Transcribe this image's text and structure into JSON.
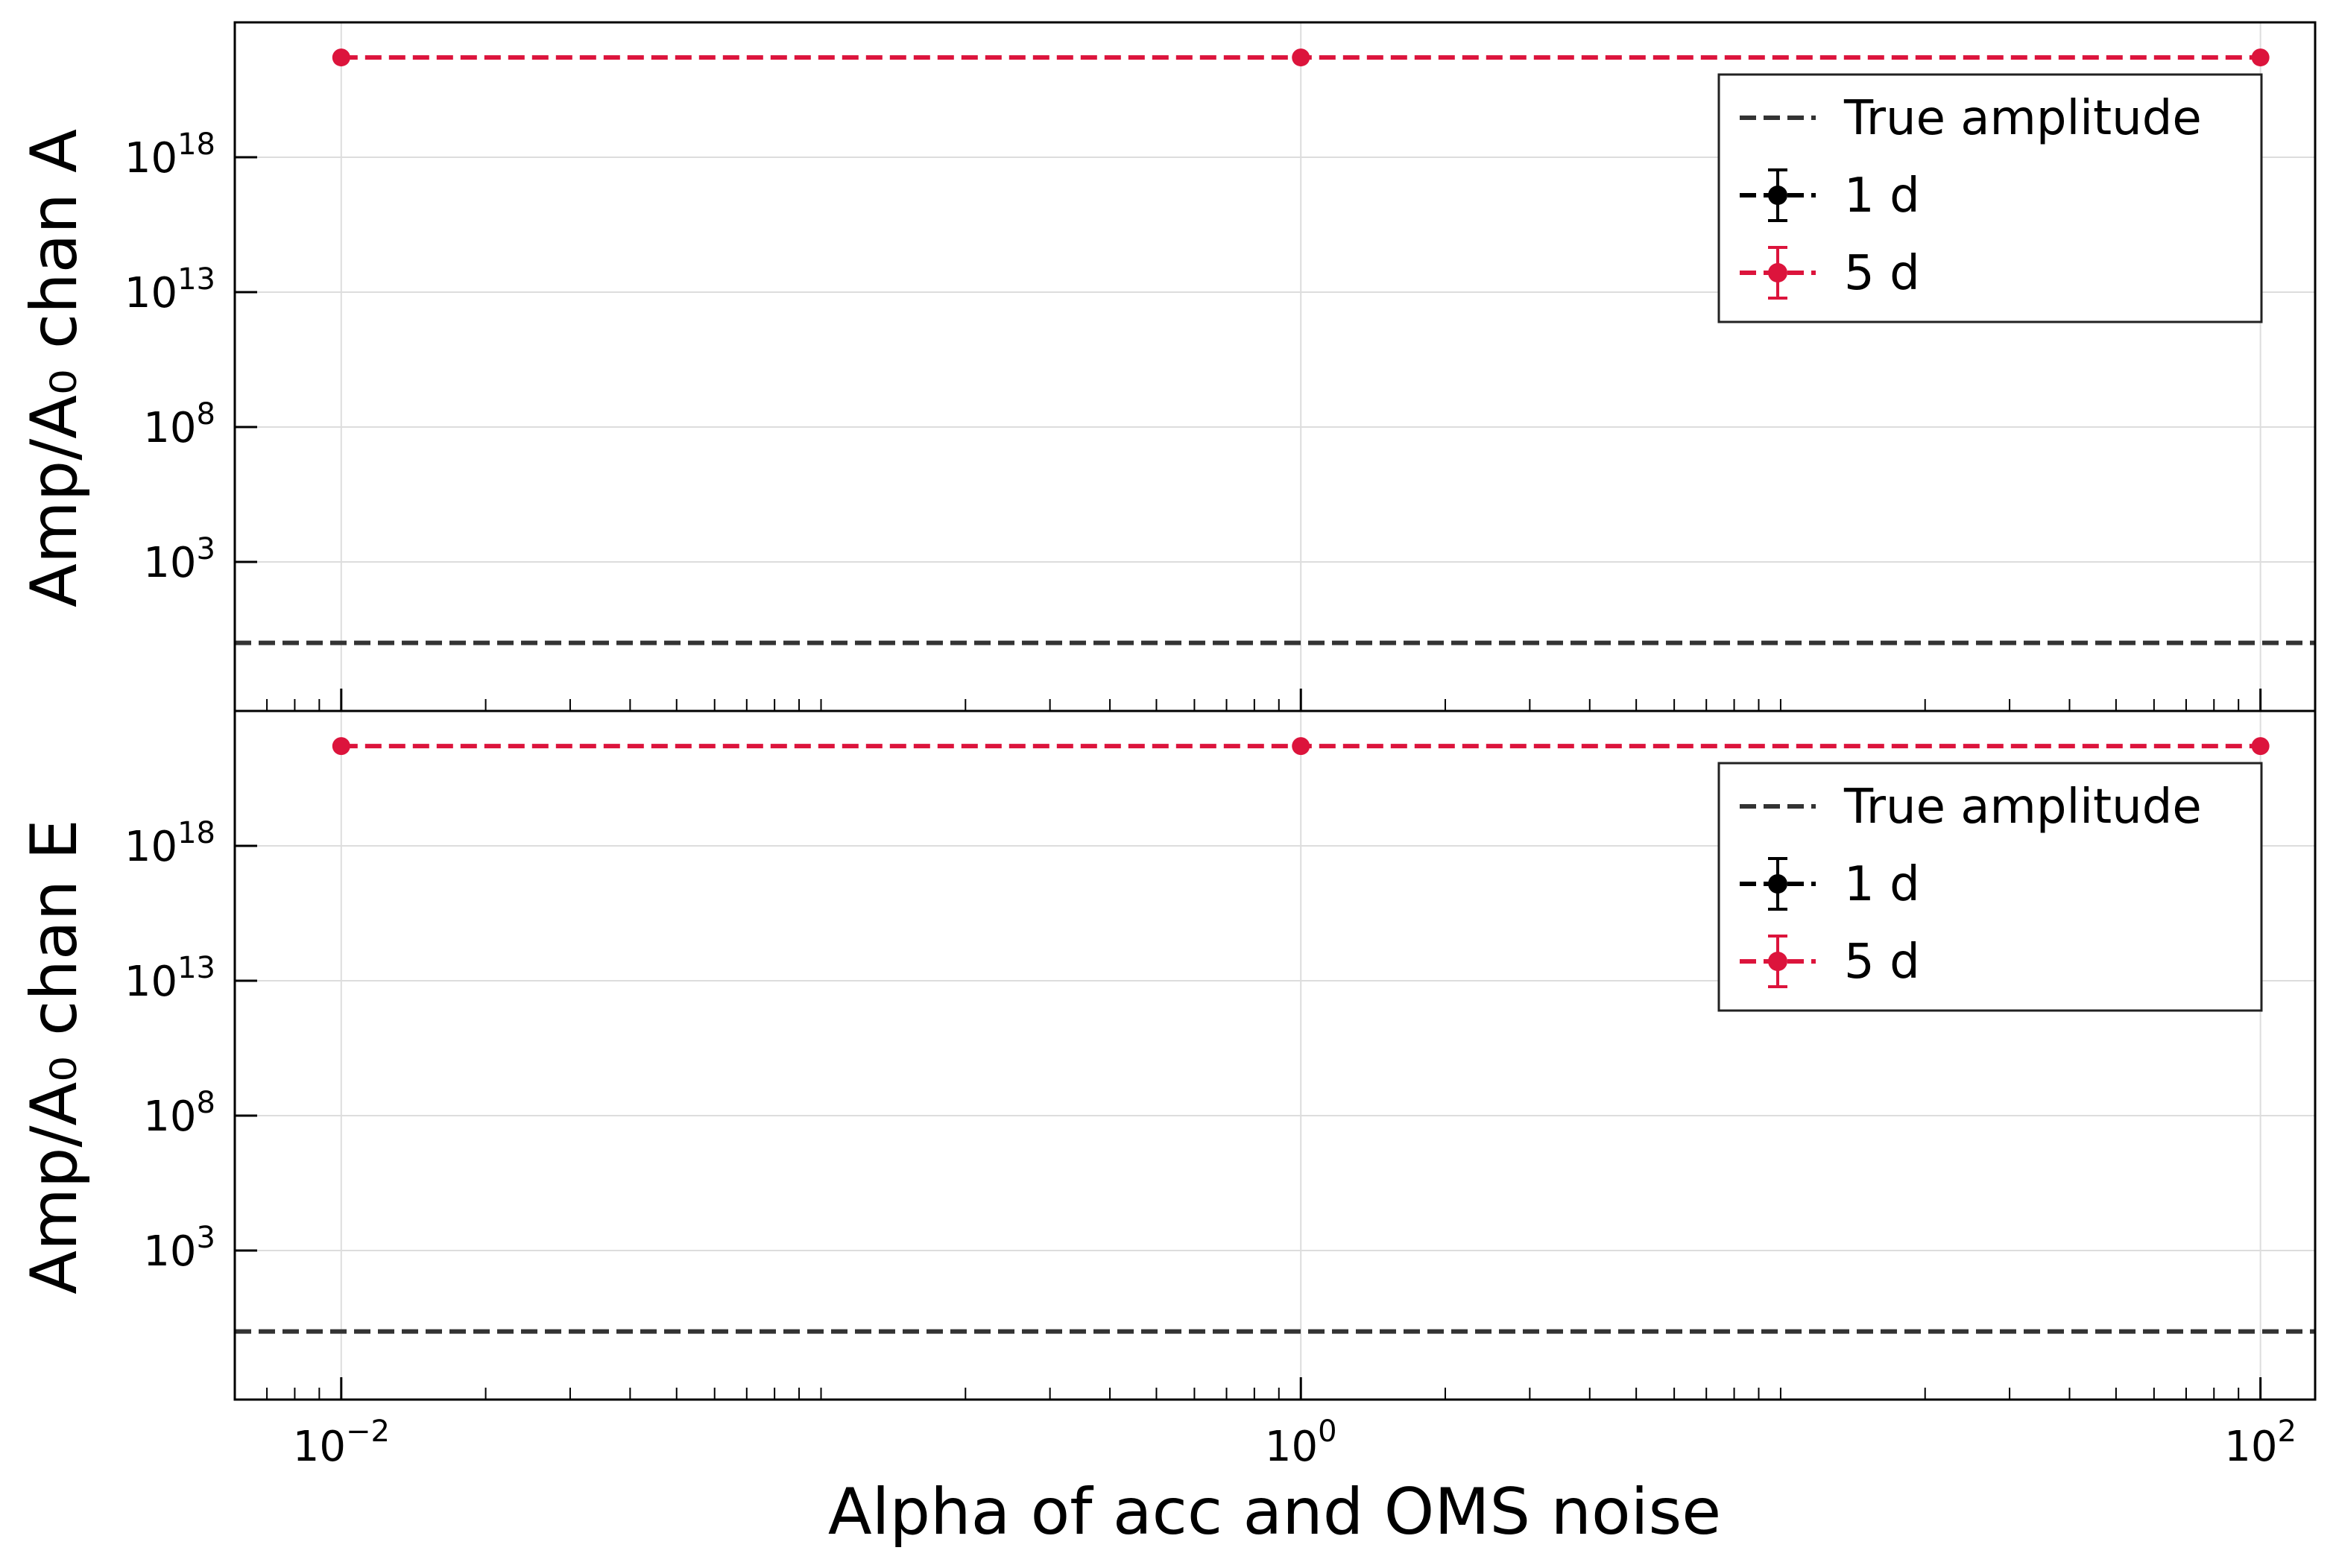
{
  "chart_data": [
    {
      "type": "line",
      "panel": "top",
      "ylabel": "Amp/A₀ chan A",
      "xscale": "log",
      "yscale": "log",
      "xlim": [
        0.006,
        130
      ],
      "ylim": [
        0.003,
        1e+23
      ],
      "grid": true,
      "yticks": [
        {
          "value": 1000.0,
          "base": "10",
          "exp": "3"
        },
        {
          "value": 100000000.0,
          "base": "10",
          "exp": "8"
        },
        {
          "value": 10000000000000.0,
          "base": "10",
          "exp": "13"
        },
        {
          "value": 1e+18,
          "base": "10",
          "exp": "18"
        }
      ],
      "true_amplitude": 1,
      "series": [
        {
          "name": "1 d",
          "color": "#000000",
          "x": [
            0.01,
            1,
            100
          ],
          "y": [
            null,
            null,
            null
          ]
        },
        {
          "name": "5 d",
          "color": "#DC143C",
          "x": [
            0.01,
            1,
            100
          ],
          "y": [
            5e+21,
            5e+21,
            5e+21
          ]
        }
      ],
      "legend": {
        "position": "upper right",
        "entries": [
          "True amplitude",
          "1 d",
          "5 d"
        ]
      }
    },
    {
      "type": "line",
      "panel": "bottom",
      "ylabel": "Amp/A₀ chan E",
      "xlabel": "Alpha of acc and OMS noise",
      "xscale": "log",
      "yscale": "log",
      "xlim": [
        0.006,
        130
      ],
      "ylim": [
        0.003,
        1e+23
      ],
      "grid": true,
      "xticks": [
        {
          "value": 0.01,
          "base": "10",
          "exp": "−2"
        },
        {
          "value": 1,
          "base": "10",
          "exp": "0"
        },
        {
          "value": 100,
          "base": "10",
          "exp": "2"
        }
      ],
      "yticks": [
        {
          "value": 1000.0,
          "base": "10",
          "exp": "3"
        },
        {
          "value": 100000000.0,
          "base": "10",
          "exp": "8"
        },
        {
          "value": 10000000000000.0,
          "base": "10",
          "exp": "13"
        },
        {
          "value": 1e+18,
          "base": "10",
          "exp": "18"
        }
      ],
      "true_amplitude": 1,
      "series": [
        {
          "name": "1 d",
          "color": "#000000",
          "x": [
            0.01,
            1,
            100
          ],
          "y": [
            null,
            null,
            null
          ]
        },
        {
          "name": "5 d",
          "color": "#DC143C",
          "x": [
            0.01,
            1,
            100
          ],
          "y": [
            5e+21,
            5e+21,
            5e+21
          ]
        }
      ],
      "legend": {
        "position": "upper right",
        "entries": [
          "True amplitude",
          "1 d",
          "5 d"
        ]
      }
    }
  ],
  "colors": {
    "true_amplitude": "#333333",
    "series_1d": "#000000",
    "series_5d": "#DC143C",
    "grid": "#dddddd"
  }
}
